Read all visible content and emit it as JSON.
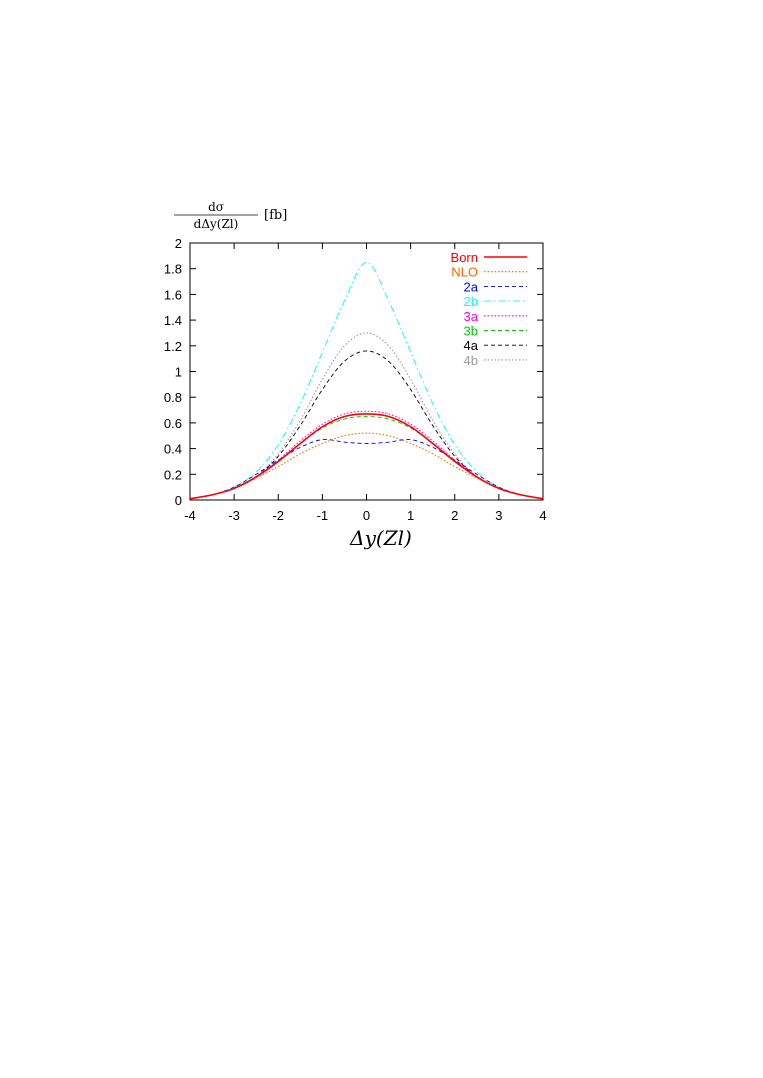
{
  "chart_data": {
    "type": "line",
    "title": "",
    "ylabel_numerator": "dσ",
    "ylabel_denominator": "dΔy(Zl)",
    "ylabel_unit": "[fb]",
    "xlabel": "Δy(Zl)",
    "xlim": [
      -4,
      4
    ],
    "ylim": [
      0,
      2
    ],
    "xticks": [
      "-4",
      "-3",
      "-2",
      "-1",
      "0",
      "1",
      "2",
      "3",
      "4"
    ],
    "yticks": [
      "0",
      "0.2",
      "0.4",
      "0.6",
      "0.8",
      "1",
      "1.2",
      "1.4",
      "1.6",
      "1.8",
      "2"
    ],
    "legend_position": "top-right",
    "grid": false,
    "x": [
      -4,
      -3.5,
      -3,
      -2.5,
      -2,
      -1.5,
      -1,
      -0.5,
      0,
      0.5,
      1,
      1.5,
      2,
      2.5,
      3,
      3.5,
      4
    ],
    "series": [
      {
        "name": "Born",
        "color": "#ff0000",
        "style": "solid",
        "values": [
          0.01,
          0.04,
          0.09,
          0.18,
          0.3,
          0.44,
          0.57,
          0.65,
          0.67,
          0.65,
          0.57,
          0.44,
          0.3,
          0.18,
          0.09,
          0.04,
          0.01
        ]
      },
      {
        "name": "NLO",
        "color": "#ff6600",
        "style": "dotted",
        "values": [
          0.01,
          0.04,
          0.09,
          0.17,
          0.26,
          0.36,
          0.44,
          0.5,
          0.52,
          0.5,
          0.44,
          0.36,
          0.26,
          0.17,
          0.09,
          0.04,
          0.01
        ]
      },
      {
        "name": "2a",
        "color": "#0000ff",
        "style": "dashed",
        "values": [
          0.01,
          0.04,
          0.1,
          0.2,
          0.31,
          0.41,
          0.47,
          0.45,
          0.44,
          0.45,
          0.47,
          0.41,
          0.31,
          0.2,
          0.1,
          0.04,
          0.01
        ]
      },
      {
        "name": "2b",
        "color": "#00ffff",
        "style": "dashdot",
        "values": [
          0.01,
          0.04,
          0.1,
          0.22,
          0.43,
          0.75,
          1.15,
          1.55,
          1.85,
          1.55,
          1.15,
          0.75,
          0.43,
          0.22,
          0.1,
          0.04,
          0.01
        ]
      },
      {
        "name": "3a",
        "color": "#ff00ff",
        "style": "dotted",
        "values": [
          0.01,
          0.04,
          0.09,
          0.18,
          0.31,
          0.46,
          0.59,
          0.67,
          0.69,
          0.67,
          0.59,
          0.46,
          0.31,
          0.18,
          0.09,
          0.04,
          0.01
        ]
      },
      {
        "name": "3b",
        "color": "#00cc00",
        "style": "dashed",
        "values": [
          0.01,
          0.04,
          0.09,
          0.18,
          0.3,
          0.44,
          0.56,
          0.63,
          0.65,
          0.63,
          0.56,
          0.44,
          0.3,
          0.18,
          0.09,
          0.04,
          0.01
        ]
      },
      {
        "name": "4a",
        "color": "#000000",
        "style": "dashed",
        "values": [
          0.01,
          0.04,
          0.09,
          0.18,
          0.34,
          0.58,
          0.86,
          1.08,
          1.16,
          1.08,
          0.86,
          0.58,
          0.34,
          0.18,
          0.09,
          0.04,
          0.01
        ]
      },
      {
        "name": "4b",
        "color": "#999999",
        "style": "dotted",
        "values": [
          0.01,
          0.04,
          0.09,
          0.18,
          0.36,
          0.62,
          0.94,
          1.2,
          1.3,
          1.2,
          0.94,
          0.62,
          0.36,
          0.18,
          0.09,
          0.04,
          0.01
        ]
      }
    ]
  }
}
